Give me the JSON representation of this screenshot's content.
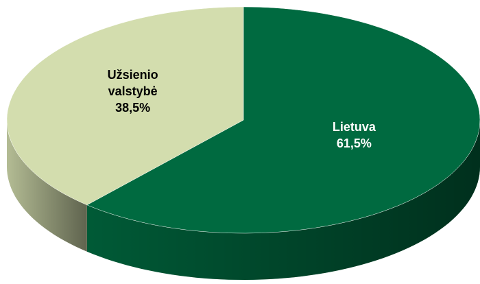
{
  "chart_data": {
    "type": "pie",
    "categories": [
      "Lietuva",
      "Užsienio valstybė"
    ],
    "values": [
      61.5,
      38.5
    ],
    "value_labels": [
      "61,5%",
      "38,5%"
    ],
    "colors": [
      "#006a40",
      "#d3ddae"
    ],
    "label_colors": [
      "#ffffff",
      "#000000"
    ]
  }
}
